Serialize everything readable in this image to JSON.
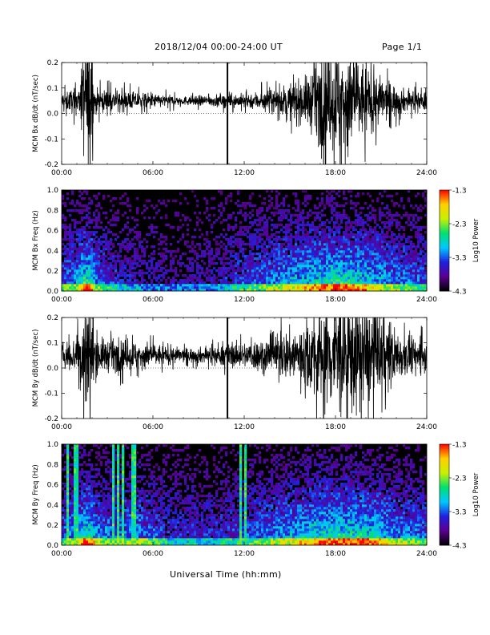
{
  "header": {
    "title": "2018/12/04  00:00-24:00 UT",
    "page": "Page 1/1"
  },
  "x_axis_title": "Universal Time (hh:mm)",
  "colors": {
    "background": "#ffffff",
    "trace": "#000000",
    "colormap": [
      "#000000",
      "#5a0090",
      "#2020e0",
      "#00c8ff",
      "#00e070",
      "#c8f000",
      "#ffd000",
      "#ff0000"
    ]
  },
  "chart_data": [
    {
      "type": "line",
      "ylabel": "MCM Bx dB/dt (nT/sec)",
      "xlim": [
        0,
        24
      ],
      "ylim": [
        -0.2,
        0.2
      ],
      "x_ticks": [
        "00:00",
        "06:00",
        "12:00",
        "18:00",
        "24:00"
      ],
      "y_ticks": [
        "-0.2",
        "-0.1",
        "0.0",
        "0.1",
        "0.2"
      ],
      "baseline": 0.05,
      "noise_amplitude_by_hour": [
        [
          0,
          0.03
        ],
        [
          1.2,
          0.05
        ],
        [
          1.5,
          0.22
        ],
        [
          1.9,
          0.22
        ],
        [
          2.2,
          0.04
        ],
        [
          5,
          0.03
        ],
        [
          8,
          0.015
        ],
        [
          10,
          0.02
        ],
        [
          12,
          0.025
        ],
        [
          14,
          0.04
        ],
        [
          16,
          0.08
        ],
        [
          17,
          0.15
        ],
        [
          18.5,
          0.2
        ],
        [
          19.5,
          0.15
        ],
        [
          21,
          0.08
        ],
        [
          22.5,
          0.04
        ],
        [
          24,
          0.03
        ]
      ],
      "spikes_hours": [
        10.9
      ]
    },
    {
      "type": "heatmap",
      "ylabel": "MCM Bx Freq (Hz)",
      "xlim": [
        0,
        24
      ],
      "ylim": [
        0,
        1.0
      ],
      "x_ticks": [
        "00:00",
        "06:00",
        "12:00",
        "18:00",
        "24:00"
      ],
      "y_ticks": [
        "0.0",
        "0.2",
        "0.4",
        "0.6",
        "0.8",
        "1.0"
      ],
      "colorbar": {
        "label": "Log10 Power",
        "ticks": [
          "-1.3",
          "-2.3",
          "-3.3",
          "-4.3"
        ],
        "range": [
          -4.3,
          -1.3
        ]
      },
      "activity_by_hour": [
        [
          0,
          0.35
        ],
        [
          1.2,
          0.55
        ],
        [
          1.6,
          1.0
        ],
        [
          2.2,
          0.45
        ],
        [
          4,
          0.25
        ],
        [
          7,
          0.15
        ],
        [
          10,
          0.2
        ],
        [
          12,
          0.35
        ],
        [
          15,
          0.55
        ],
        [
          17,
          0.7
        ],
        [
          18.5,
          0.8
        ],
        [
          20,
          0.65
        ],
        [
          22,
          0.45
        ],
        [
          24,
          0.35
        ]
      ],
      "vertical_lines_hours": []
    },
    {
      "type": "line",
      "ylabel": "MCM By dB/dt (nT/sec)",
      "xlim": [
        0,
        24
      ],
      "ylim": [
        -0.2,
        0.2
      ],
      "x_ticks": [
        "00:00",
        "06:00",
        "12:00",
        "18:00",
        "24:00"
      ],
      "y_ticks": [
        "-0.2",
        "-0.1",
        "0.0",
        "0.1",
        "0.2"
      ],
      "baseline": 0.05,
      "noise_amplitude_by_hour": [
        [
          0,
          0.04
        ],
        [
          1.2,
          0.07
        ],
        [
          1.5,
          0.22
        ],
        [
          1.9,
          0.22
        ],
        [
          2.3,
          0.06
        ],
        [
          5,
          0.05
        ],
        [
          8,
          0.025
        ],
        [
          10,
          0.03
        ],
        [
          12,
          0.045
        ],
        [
          14,
          0.07
        ],
        [
          16,
          0.11
        ],
        [
          17,
          0.17
        ],
        [
          18.5,
          0.22
        ],
        [
          19.5,
          0.2
        ],
        [
          21,
          0.13
        ],
        [
          22.5,
          0.07
        ],
        [
          24,
          0.05
        ]
      ],
      "spikes_hours": [
        10.9
      ]
    },
    {
      "type": "heatmap",
      "ylabel": "MCM By Freq (Hz)",
      "xlim": [
        0,
        24
      ],
      "ylim": [
        0,
        1.0
      ],
      "x_ticks": [
        "00:00",
        "06:00",
        "12:00",
        "18:00",
        "24:00"
      ],
      "y_ticks": [
        "0.0",
        "0.2",
        "0.4",
        "0.6",
        "0.8",
        "1.0"
      ],
      "colorbar": {
        "label": "Log10 Power",
        "ticks": [
          "-1.3",
          "-2.3",
          "-3.3",
          "-4.3"
        ],
        "range": [
          -4.3,
          -1.3
        ]
      },
      "activity_by_hour": [
        [
          0,
          0.4
        ],
        [
          1.2,
          0.55
        ],
        [
          1.6,
          0.95
        ],
        [
          2.3,
          0.5
        ],
        [
          4,
          0.45
        ],
        [
          5,
          0.5
        ],
        [
          7,
          0.3
        ],
        [
          10,
          0.3
        ],
        [
          12,
          0.35
        ],
        [
          15,
          0.55
        ],
        [
          17,
          0.75
        ],
        [
          18.5,
          0.8
        ],
        [
          20,
          0.75
        ],
        [
          22,
          0.5
        ],
        [
          24,
          0.4
        ]
      ],
      "vertical_lines_hours": [
        0.45,
        0.95,
        3.35,
        3.75,
        4.05,
        4.6,
        4.85,
        11.8,
        12.05
      ]
    }
  ]
}
